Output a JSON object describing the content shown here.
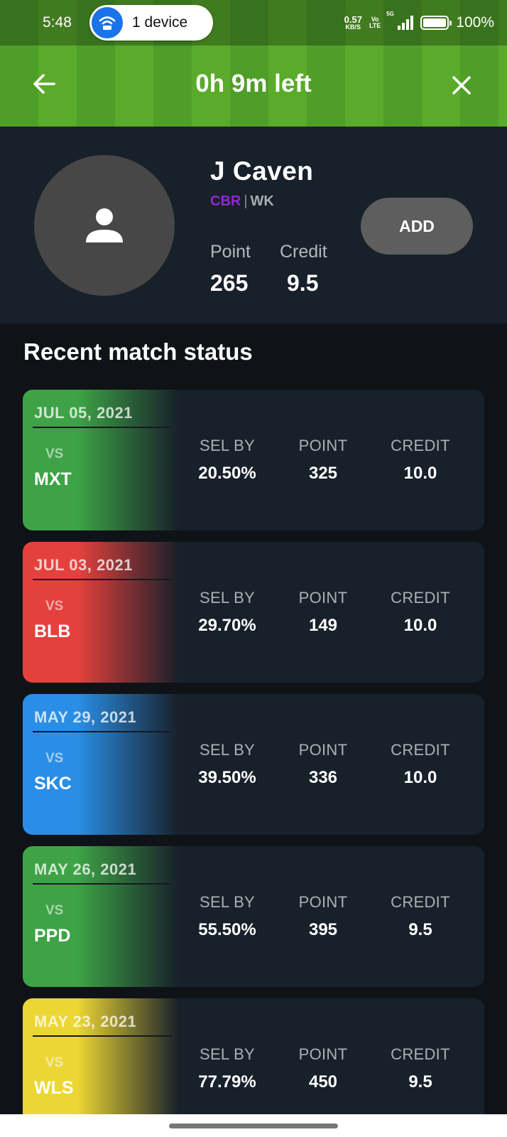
{
  "status_bar": {
    "time": "5:48",
    "device_pill": "1 device",
    "speed_value": "0.57",
    "speed_unit": "KB/S",
    "volte_top": "Vo",
    "volte_bottom": "LTE",
    "network": "5G",
    "battery": "100%"
  },
  "header": {
    "timer": "0h 9m left",
    "back_icon": "arrow-left-icon",
    "close_icon": "close-icon"
  },
  "player": {
    "name": "J Caven",
    "team": "CBR",
    "separator": "|",
    "role": "WK",
    "point_label": "Point",
    "point_value": "265",
    "credit_label": "Credit",
    "credit_value": "9.5",
    "add_label": "ADD"
  },
  "section_title": "Recent match status",
  "match_columns": {
    "sel_by": "SEL BY",
    "point": "POINT",
    "credit": "CREDIT"
  },
  "matches": [
    {
      "date": "JUL 05, 2021",
      "vs": "VS",
      "opponent": "MXT",
      "sel_by": "20.50%",
      "point": "325",
      "credit": "10.0",
      "color": "#3da346"
    },
    {
      "date": "JUL 03, 2021",
      "vs": "VS",
      "opponent": "BLB",
      "sel_by": "29.70%",
      "point": "149",
      "credit": "10.0",
      "color": "#e5413c"
    },
    {
      "date": "MAY 29, 2021",
      "vs": "VS",
      "opponent": "SKC",
      "sel_by": "39.50%",
      "point": "336",
      "credit": "10.0",
      "color": "#2a8ee6"
    },
    {
      "date": "MAY 26, 2021",
      "vs": "VS",
      "opponent": "PPD",
      "sel_by": "55.50%",
      "point": "395",
      "credit": "9.5",
      "color": "#3da346"
    },
    {
      "date": "MAY 23, 2021",
      "vs": "VS",
      "opponent": "WLS",
      "sel_by": "77.79%",
      "point": "450",
      "credit": "9.5",
      "color": "#ecd633"
    }
  ]
}
